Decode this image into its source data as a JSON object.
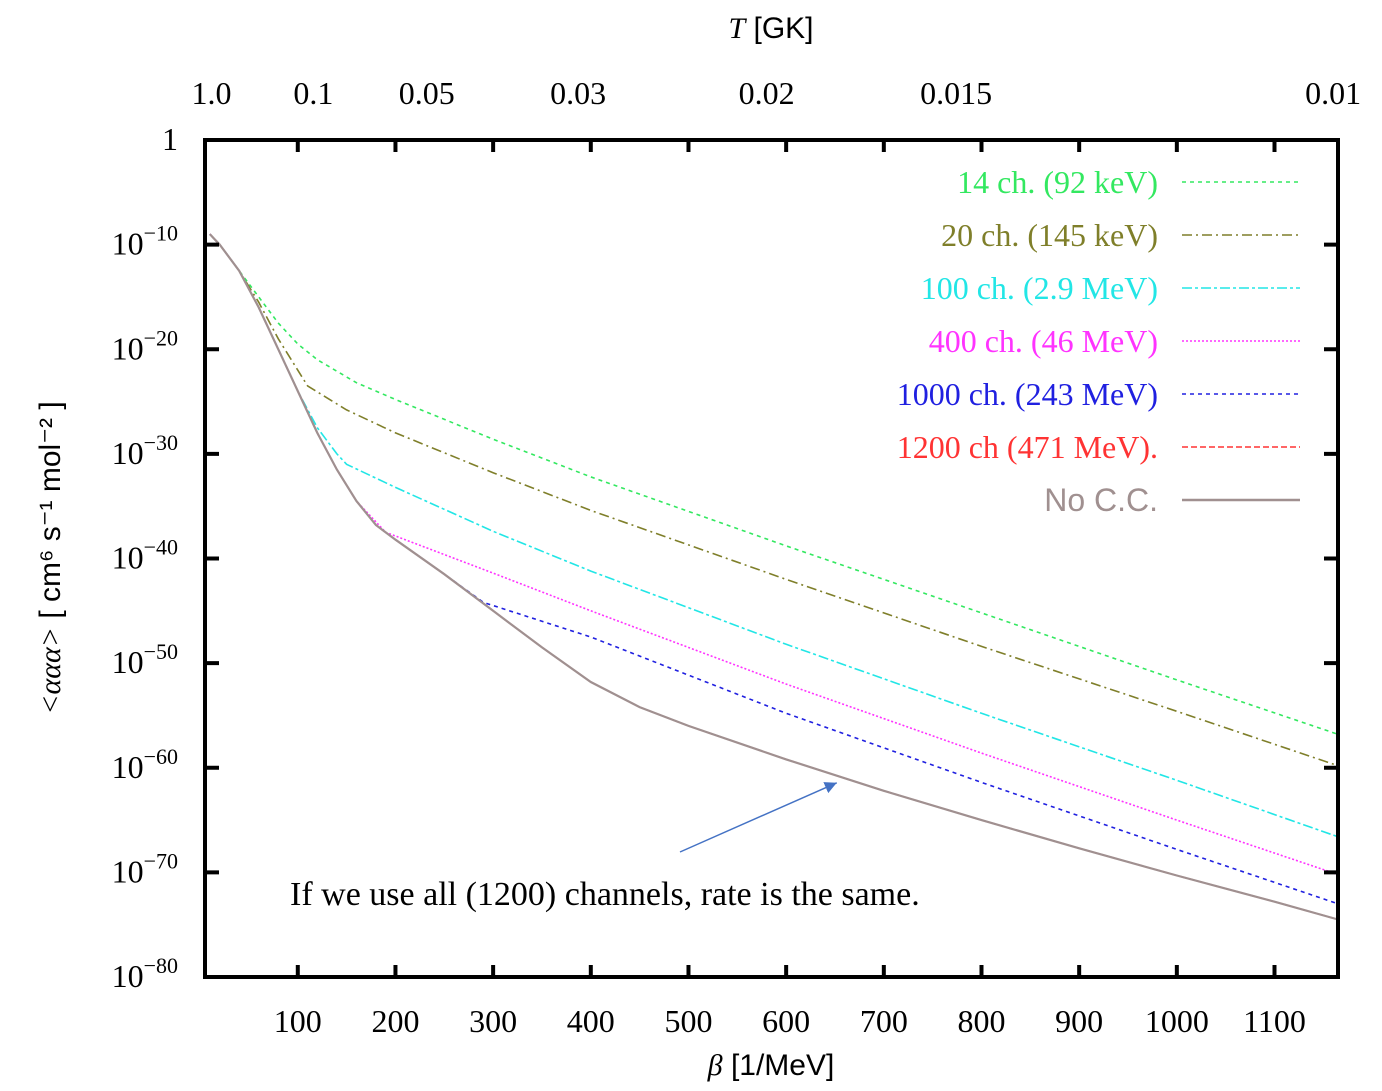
{
  "chart_data": {
    "type": "line",
    "xlabel": "β [1/MeV]",
    "x2label": "T [GK]",
    "ylabel": "<ααα> [ cm⁶ s⁻¹ mol⁻² ]",
    "xlim": [
      5,
      1165
    ],
    "ylim_log10": [
      -80,
      0
    ],
    "yscale": "log",
    "grid": false,
    "legend_position": "top-right",
    "x_ticks": [
      100,
      200,
      300,
      400,
      500,
      600,
      700,
      800,
      900,
      1000,
      1100
    ],
    "x_tick_labels": [
      "100",
      "200",
      "300",
      "400",
      "500",
      "600",
      "700",
      "800",
      "900",
      "1000",
      "1100"
    ],
    "y_ticks_log10": [
      0,
      -10,
      -20,
      -30,
      -40,
      -50,
      -60,
      -70,
      -80
    ],
    "y_tick_labels": [
      {
        "mantissa": "1",
        "exp": ""
      },
      {
        "mantissa": "10",
        "exp": "−10"
      },
      {
        "mantissa": "10",
        "exp": "−20"
      },
      {
        "mantissa": "10",
        "exp": "−30"
      },
      {
        "mantissa": "10",
        "exp": "−40"
      },
      {
        "mantissa": "10",
        "exp": "−50"
      },
      {
        "mantissa": "10",
        "exp": "−60"
      },
      {
        "mantissa": "10",
        "exp": "−70"
      },
      {
        "mantissa": "10",
        "exp": "−80"
      }
    ],
    "top_ticks_beta": [
      11.6,
      116,
      232,
      387,
      580,
      774,
      1160
    ],
    "top_tick_labels": [
      "1.0",
      "0.1",
      "0.05",
      "0.03",
      "0.02",
      "0.015",
      "0.01"
    ],
    "series": [
      {
        "name": "14 ch. (92 keV)",
        "color": "#33e860",
        "dash": "4,4",
        "x": [
          10,
          20,
          40,
          60,
          80,
          100,
          120,
          160,
          200,
          300,
          400,
          600,
          800,
          1000,
          1165
        ],
        "y": [
          -9,
          -10,
          -12.5,
          -15,
          -17.5,
          -19.5,
          -21,
          -23.2,
          -24.8,
          -28.6,
          -32.2,
          -38.8,
          -45.2,
          -51.6,
          -56.8
        ]
      },
      {
        "name": "20 ch. (145 keV)",
        "color": "#7f7f2a",
        "dash": "10,4,2,4",
        "x": [
          10,
          20,
          40,
          60,
          80,
          100,
          110,
          150,
          200,
          300,
          400,
          600,
          800,
          1000,
          1165
        ],
        "y": [
          -9,
          -10,
          -12.5,
          -15.5,
          -19,
          -22,
          -23.5,
          -25.8,
          -28,
          -31.8,
          -35.4,
          -42,
          -48.4,
          -54.6,
          -59.8
        ]
      },
      {
        "name": "100 ch. (2.9 MeV)",
        "color": "#22e6e6",
        "dash": "10,3,3,3",
        "x": [
          10,
          20,
          40,
          60,
          80,
          100,
          120,
          140,
          150,
          200,
          300,
          400,
          600,
          800,
          1000,
          1165
        ],
        "y": [
          -9,
          -10,
          -12.5,
          -16,
          -20,
          -24,
          -27.5,
          -30,
          -31,
          -33.2,
          -37.4,
          -41.2,
          -48.2,
          -54.8,
          -61.2,
          -66.6
        ]
      },
      {
        "name": "400 ch. (46 MeV)",
        "color": "#ff33ff",
        "dash": "2,2",
        "x": [
          10,
          20,
          40,
          60,
          80,
          100,
          120,
          140,
          160,
          190,
          300,
          400,
          600,
          800,
          1000,
          1165
        ],
        "y": [
          -9,
          -10,
          -12.5,
          -16,
          -20,
          -24,
          -28,
          -31.5,
          -34.5,
          -37.5,
          -41.4,
          -45,
          -52,
          -58.6,
          -65,
          -70.2
        ]
      },
      {
        "name": "1000 ch. (243 MeV)",
        "color": "#2020e0",
        "dash": "4,4",
        "x": [
          10,
          20,
          40,
          60,
          80,
          100,
          120,
          140,
          160,
          180,
          200,
          250,
          290,
          400,
          600,
          800,
          1000,
          1165
        ],
        "y": [
          -9,
          -10,
          -12.5,
          -16,
          -20,
          -24,
          -28,
          -31.5,
          -34.5,
          -36.8,
          -38.2,
          -41.5,
          -44.2,
          -47.5,
          -54.8,
          -61.4,
          -67.8,
          -73
        ]
      },
      {
        "name": "1200 ch (471 MeV).",
        "color": "#ff3333",
        "dash": "6,3",
        "x": [
          10,
          20,
          40,
          60,
          80,
          100,
          120,
          140,
          160,
          180,
          200,
          250,
          300,
          350,
          400,
          450,
          500,
          600,
          700,
          800,
          900,
          1000,
          1100,
          1165
        ],
        "y": [
          -9,
          -10,
          -12.5,
          -16,
          -20,
          -24,
          -28,
          -31.5,
          -34.5,
          -36.8,
          -38.2,
          -41.5,
          -45,
          -48.5,
          -51.8,
          -54.2,
          -56,
          -59.2,
          -62.2,
          -65,
          -67.7,
          -70.3,
          -72.8,
          -74.5
        ]
      },
      {
        "name": "No C.C.",
        "color": "#a09090",
        "dash": "",
        "x": [
          10,
          20,
          40,
          60,
          80,
          100,
          120,
          140,
          160,
          180,
          200,
          250,
          300,
          350,
          400,
          450,
          500,
          600,
          700,
          800,
          900,
          1000,
          1100,
          1165
        ],
        "y": [
          -9,
          -10,
          -12.5,
          -16,
          -20,
          -24,
          -28,
          -31.5,
          -34.5,
          -36.8,
          -38.2,
          -41.5,
          -45,
          -48.5,
          -51.8,
          -54.2,
          -56,
          -59.2,
          -62.2,
          -65,
          -67.7,
          -70.3,
          -72.8,
          -74.5
        ]
      }
    ],
    "annotation": {
      "text": "If we use all (1200) channels, rate is the same.",
      "arrow_to": {
        "x": 660,
        "y": -62.2
      },
      "arrow_color": "#4472c4"
    }
  }
}
